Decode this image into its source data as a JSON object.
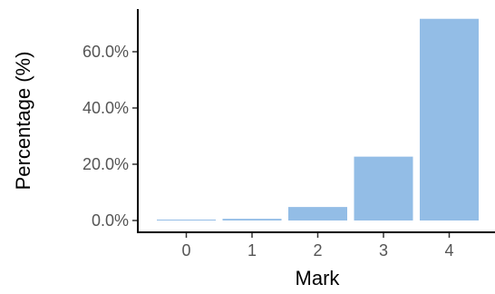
{
  "chart_data": {
    "type": "bar",
    "categories": [
      "0",
      "1",
      "2",
      "3",
      "4"
    ],
    "values": [
      0.2,
      0.6,
      4.8,
      22.7,
      71.7
    ],
    "title": "",
    "xlabel": "Mark",
    "ylabel": "Percentage (%)",
    "ylim": [
      0,
      75
    ],
    "yticks": [
      0,
      20,
      40,
      60
    ],
    "ytick_labels": [
      "0.0%",
      "20.0%",
      "40.0%",
      "60.0%"
    ],
    "bar_color": "#93bde6",
    "grid": false,
    "legend": "none"
  }
}
